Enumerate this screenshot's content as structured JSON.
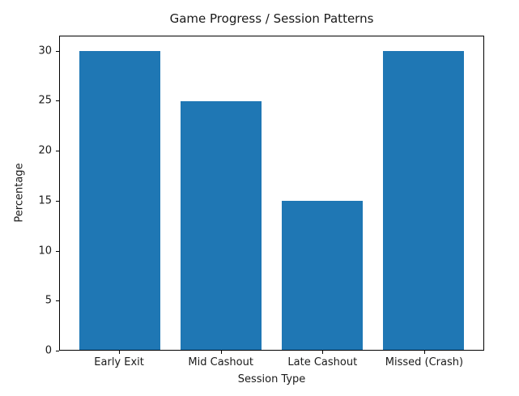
{
  "chart_data": {
    "type": "bar",
    "title": "Game Progress / Session Patterns",
    "categories": [
      "Early Exit",
      "Mid Cashout",
      "Late Cashout",
      "Missed (Crash)"
    ],
    "values": [
      30,
      25,
      15,
      30
    ],
    "xlabel": "Session Type",
    "ylabel": "Percentage",
    "ylim": [
      0,
      31.5
    ],
    "yticks": [
      0,
      5,
      10,
      15,
      20,
      25,
      30
    ],
    "bar_color": "#1f77b4",
    "grid": false,
    "legend_position": "none",
    "frame": "full-box"
  },
  "colors": {
    "bar": "#1f77b4",
    "text": "#1a1a1a",
    "spine": "#000000",
    "background": "#ffffff"
  }
}
